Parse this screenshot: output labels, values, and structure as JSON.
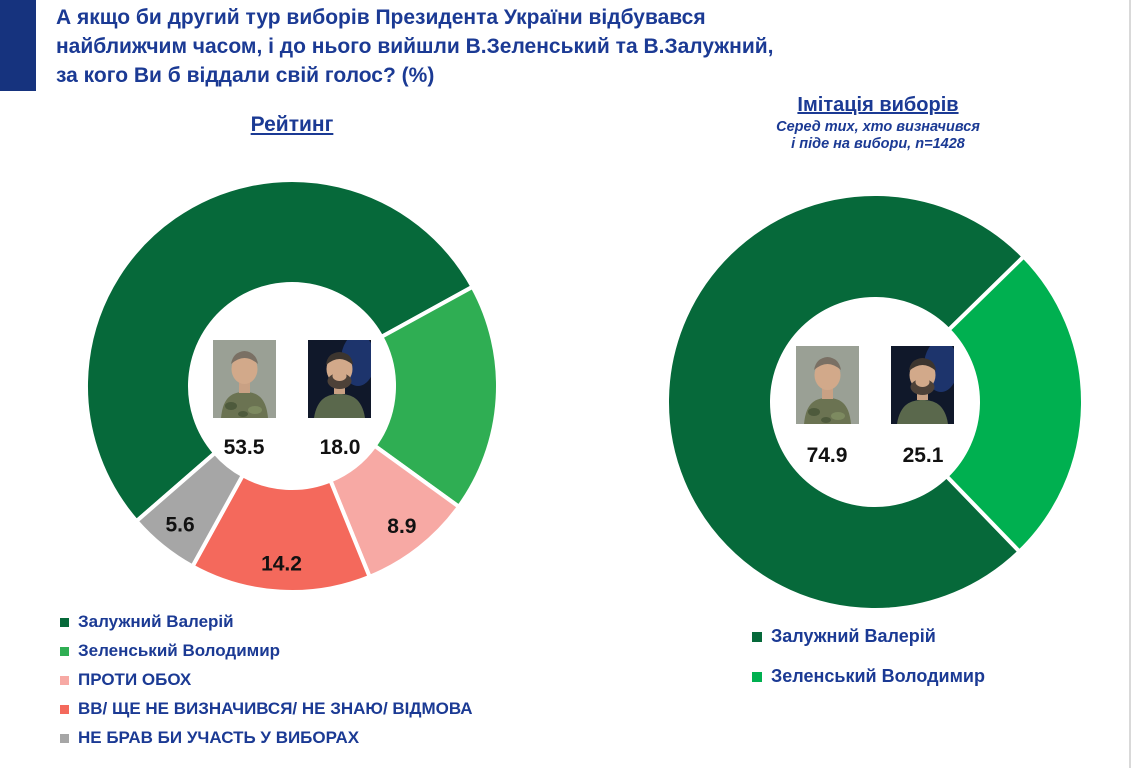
{
  "page": {
    "accent_color": "#1b3a94",
    "title_lines": [
      "А якщо би другий тур виборів Президента України відбувався",
      "найближчим часом, і до нього вийшли В.Зеленський та В.Залужний,",
      "за кого Ви б віддали свій голос? (%)"
    ]
  },
  "chart_data": [
    {
      "type": "donut",
      "title": "Рейтинг",
      "start_angle": 229,
      "legend_position": "bottom-left",
      "slices": [
        {
          "label": "Залужний Валерій",
          "value": 53.5,
          "color": "#06693a",
          "label_placement": "center"
        },
        {
          "label": "Зеленський Володимир",
          "value": 18.0,
          "color": "#2fae53",
          "label_placement": "center"
        },
        {
          "label": "ПРОТИ ОБОХ",
          "value": 8.9,
          "color": "#f7a9a4",
          "label_placement": "slice"
        },
        {
          "label": "ВВ/ ЩЕ НЕ ВИЗНАЧИВСЯ/ НЕ ЗНАЮ/ ВІДМОВА",
          "value": 14.2,
          "color": "#f4695c",
          "label_placement": "slice"
        },
        {
          "label": "НЕ БРАВ БИ УЧАСТЬ У ВИБОРАХ",
          "value": 5.6,
          "color": "#a6a6a6",
          "label_placement": "slice"
        }
      ],
      "center_values": [
        "53.5",
        "18.0"
      ],
      "center_candidates": [
        "Залужний Валерій",
        "Зеленський Володимир"
      ]
    },
    {
      "type": "donut",
      "title": "Імітація виборів",
      "subtitle_lines": [
        "Серед тих, хто визначився",
        "і піде на вибори, n=1428"
      ],
      "start_angle": 136,
      "legend_position": "bottom-right",
      "slices": [
        {
          "label": "Залужний Валерій",
          "value": 74.9,
          "color": "#06693a",
          "label_placement": "center"
        },
        {
          "label": "Зеленський Володимир",
          "value": 25.1,
          "color": "#00b050",
          "label_placement": "center"
        }
      ],
      "center_values": [
        "74.9",
        "25.1"
      ],
      "center_candidates": [
        "Залужний Валерій",
        "Зеленський Володимир"
      ]
    }
  ]
}
